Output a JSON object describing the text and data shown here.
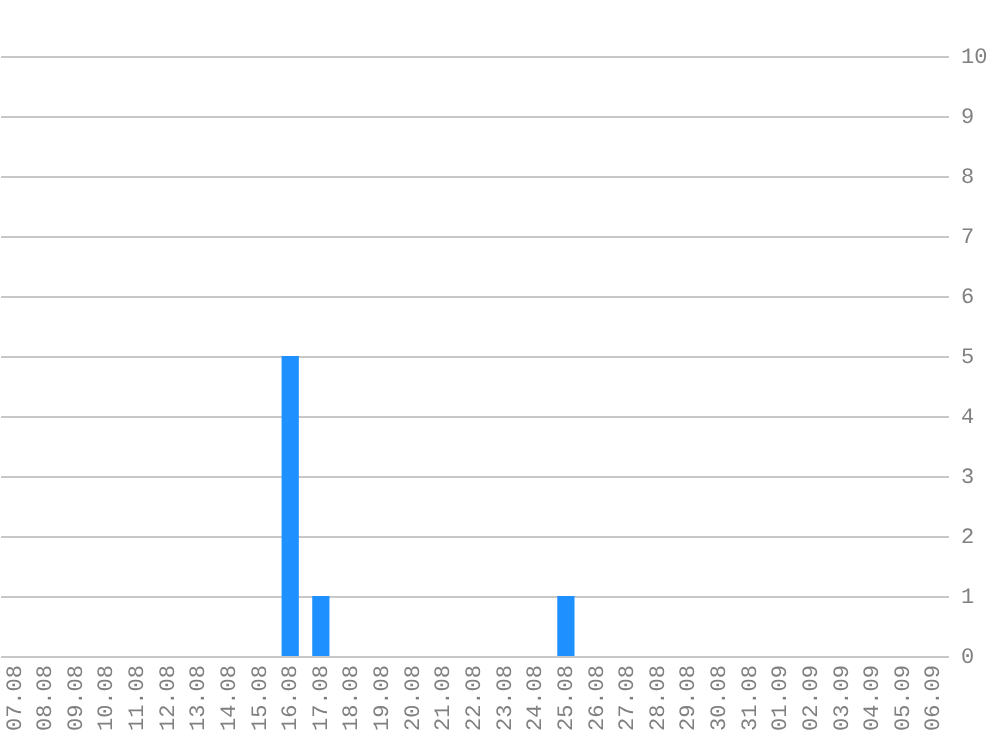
{
  "chart_data": {
    "type": "bar",
    "categories": [
      "07.08",
      "08.08",
      "09.08",
      "10.08",
      "11.08",
      "12.08",
      "13.08",
      "14.08",
      "15.08",
      "16.08",
      "17.08",
      "18.08",
      "19.08",
      "20.08",
      "21.08",
      "22.08",
      "23.08",
      "24.08",
      "25.08",
      "26.08",
      "27.08",
      "28.08",
      "29.08",
      "30.08",
      "31.08",
      "01.09",
      "02.09",
      "03.09",
      "04.09",
      "05.09",
      "06.09"
    ],
    "values": [
      0,
      0,
      0,
      0,
      0,
      0,
      0,
      0,
      0,
      5,
      1,
      0,
      0,
      0,
      0,
      0,
      0,
      0,
      1,
      0,
      0,
      0,
      0,
      0,
      0,
      0,
      0,
      0,
      0,
      0,
      0
    ],
    "color": "#1e90ff",
    "ylim": [
      0,
      10
    ],
    "yticks": [
      0,
      1,
      2,
      3,
      4,
      5,
      6,
      7,
      8,
      9,
      10
    ],
    "grid": "y"
  }
}
